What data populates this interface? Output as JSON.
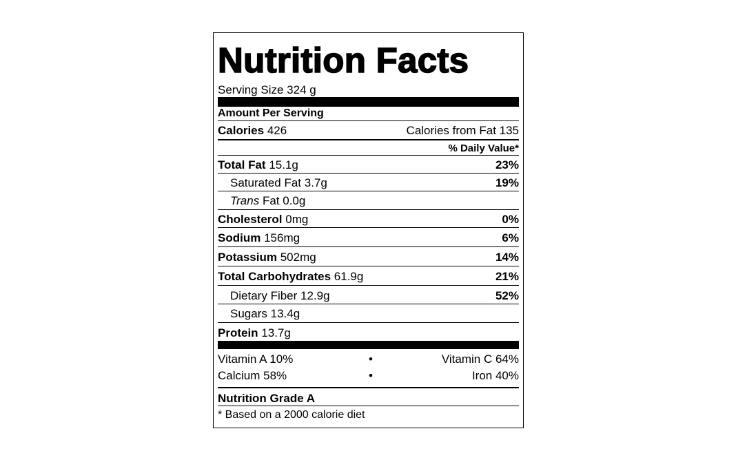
{
  "title": "Nutrition Facts",
  "serving_size": "Serving Size 324 g",
  "amount_per_serving": "Amount Per Serving",
  "calories": {
    "label": "Calories",
    "value": "426",
    "from_fat": "Calories from Fat 135"
  },
  "daily_value_header": "% Daily Value*",
  "nutrients": {
    "total_fat": {
      "label": "Total Fat",
      "amount": "15.1g",
      "dv": "23%"
    },
    "saturated_fat": {
      "label": "Saturated Fat",
      "amount": "3.7g",
      "dv": "19%"
    },
    "trans_fat": {
      "label_italic": "Trans",
      "label": "Fat",
      "amount": "0.0g"
    },
    "cholesterol": {
      "label": "Cholesterol",
      "amount": "0mg",
      "dv": "0%"
    },
    "sodium": {
      "label": "Sodium",
      "amount": "156mg",
      "dv": "6%"
    },
    "potassium": {
      "label": "Potassium",
      "amount": "502mg",
      "dv": "14%"
    },
    "total_carbs": {
      "label": "Total Carbohydrates",
      "amount": "61.9g",
      "dv": "21%"
    },
    "dietary_fiber": {
      "label": "Dietary Fiber",
      "amount": "12.9g",
      "dv": "52%"
    },
    "sugars": {
      "label": "Sugars",
      "amount": "13.4g"
    },
    "protein": {
      "label": "Protein",
      "amount": "13.7g"
    }
  },
  "vitamins": {
    "vitamin_a": "Vitamin A 10%",
    "vitamin_c": "Vitamin C 64%",
    "calcium": "Calcium 58%",
    "iron": "Iron 40%",
    "separator": "•"
  },
  "grade": "Nutrition Grade A",
  "footnote": "* Based on a 2000 calorie diet"
}
